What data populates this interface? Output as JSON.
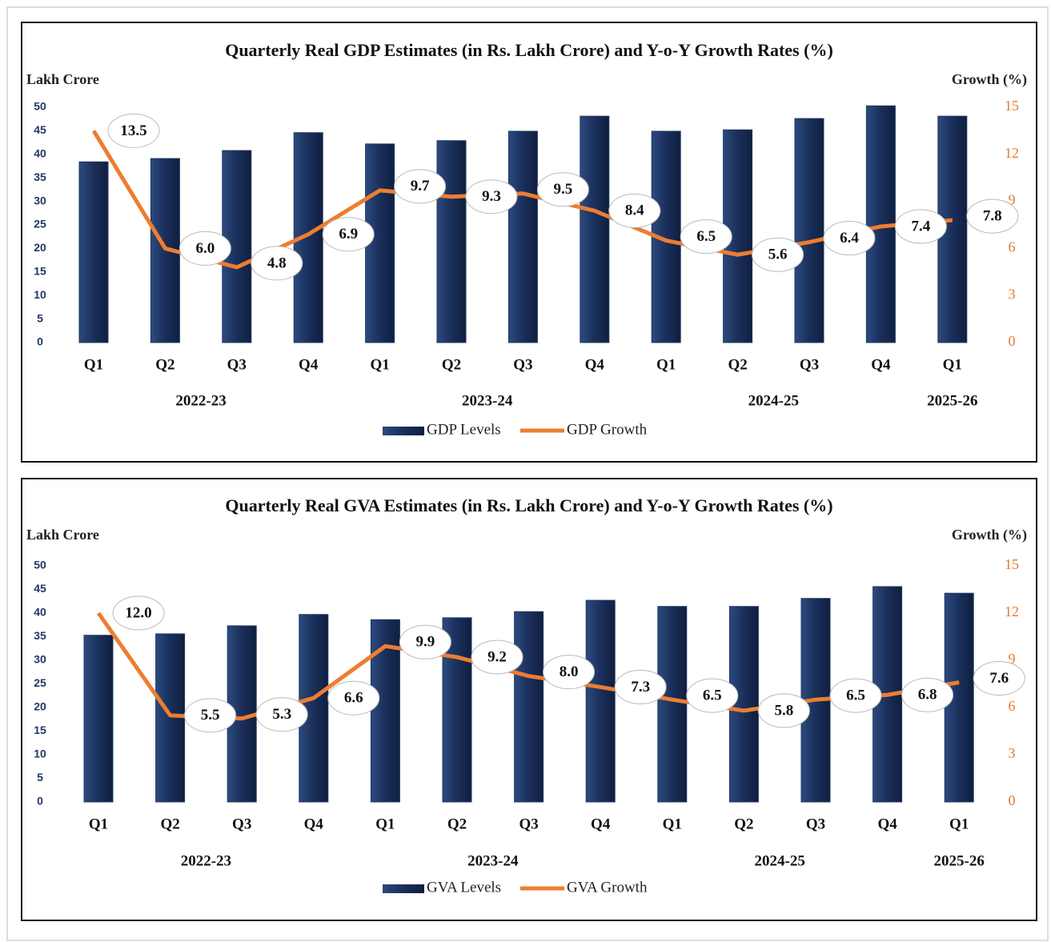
{
  "chart_data": [
    {
      "type": "bar_line",
      "title": "Quarterly Real GDP Estimates (in Rs. Lakh Crore) and Y-o-Y Growth Rates (%)",
      "y_label": "Lakh Crore",
      "y2_label": "Growth (%)",
      "categories": [
        "Q1",
        "Q2",
        "Q3",
        "Q4",
        "Q1",
        "Q2",
        "Q3",
        "Q4",
        "Q1",
        "Q2",
        "Q3",
        "Q4",
        "Q1"
      ],
      "groups": [
        "2022-23",
        "2023-24",
        "2024-25",
        "2025-26"
      ],
      "ylim": [
        0,
        50
      ],
      "yticks": [
        0,
        5,
        10,
        15,
        20,
        25,
        30,
        35,
        40,
        45,
        50
      ],
      "y2lim": [
        0,
        15
      ],
      "y2ticks": [
        0,
        3,
        6,
        9,
        12,
        15
      ],
      "series": [
        {
          "name": "GDP Levels",
          "color": "#1f3864",
          "values": [
            38.4,
            39.1,
            40.8,
            44.6,
            42.2,
            42.9,
            44.9,
            48.1,
            44.9,
            45.2,
            47.6,
            50.3,
            48.1
          ]
        },
        {
          "name": "GDP Growth",
          "color": "#ed7d31",
          "axis": "y2",
          "values": [
            13.5,
            6.0,
            4.8,
            6.9,
            9.7,
            9.3,
            9.5,
            8.4,
            6.5,
            5.6,
            6.4,
            7.4,
            7.8
          ],
          "value_labels": [
            "13.5",
            "6.0",
            "4.8",
            "6.9",
            "9.7",
            "9.3",
            "9.5",
            "8.4",
            "6.5",
            "5.6",
            "6.4",
            "7.4",
            "7.8"
          ]
        }
      ]
    },
    {
      "type": "bar_line",
      "title": "Quarterly Real GVA Estimates (in Rs. Lakh Crore) and Y-o-Y Growth Rates (%)",
      "y_label": "Lakh Crore",
      "y2_label": "Growth (%)",
      "categories": [
        "Q1",
        "Q2",
        "Q3",
        "Q4",
        "Q1",
        "Q2",
        "Q3",
        "Q4",
        "Q1",
        "Q2",
        "Q3",
        "Q4",
        "Q1"
      ],
      "groups": [
        "2022-23",
        "2023-24",
        "2024-25",
        "2025-26"
      ],
      "ylim": [
        0,
        50
      ],
      "yticks": [
        0,
        5,
        10,
        15,
        20,
        25,
        30,
        35,
        40,
        45,
        50
      ],
      "y2lim": [
        0,
        15
      ],
      "y2ticks": [
        0,
        3,
        6,
        9,
        12,
        15
      ],
      "series": [
        {
          "name": "GVA Levels",
          "color": "#1f3864",
          "values": [
            35.3,
            35.6,
            37.3,
            39.7,
            38.6,
            39.0,
            40.3,
            42.7,
            41.4,
            41.4,
            43.1,
            45.6,
            44.2
          ]
        },
        {
          "name": "GVA Growth",
          "color": "#ed7d31",
          "axis": "y2",
          "values": [
            12.0,
            5.5,
            5.3,
            6.6,
            9.9,
            9.2,
            8.0,
            7.3,
            6.5,
            5.8,
            6.5,
            6.8,
            7.6
          ],
          "value_labels": [
            "12.0",
            "5.5",
            "5.3",
            "6.6",
            "9.9",
            "9.2",
            "8.0",
            "7.3",
            "6.5",
            "5.8",
            "6.5",
            "6.8",
            "7.6"
          ]
        }
      ]
    }
  ]
}
